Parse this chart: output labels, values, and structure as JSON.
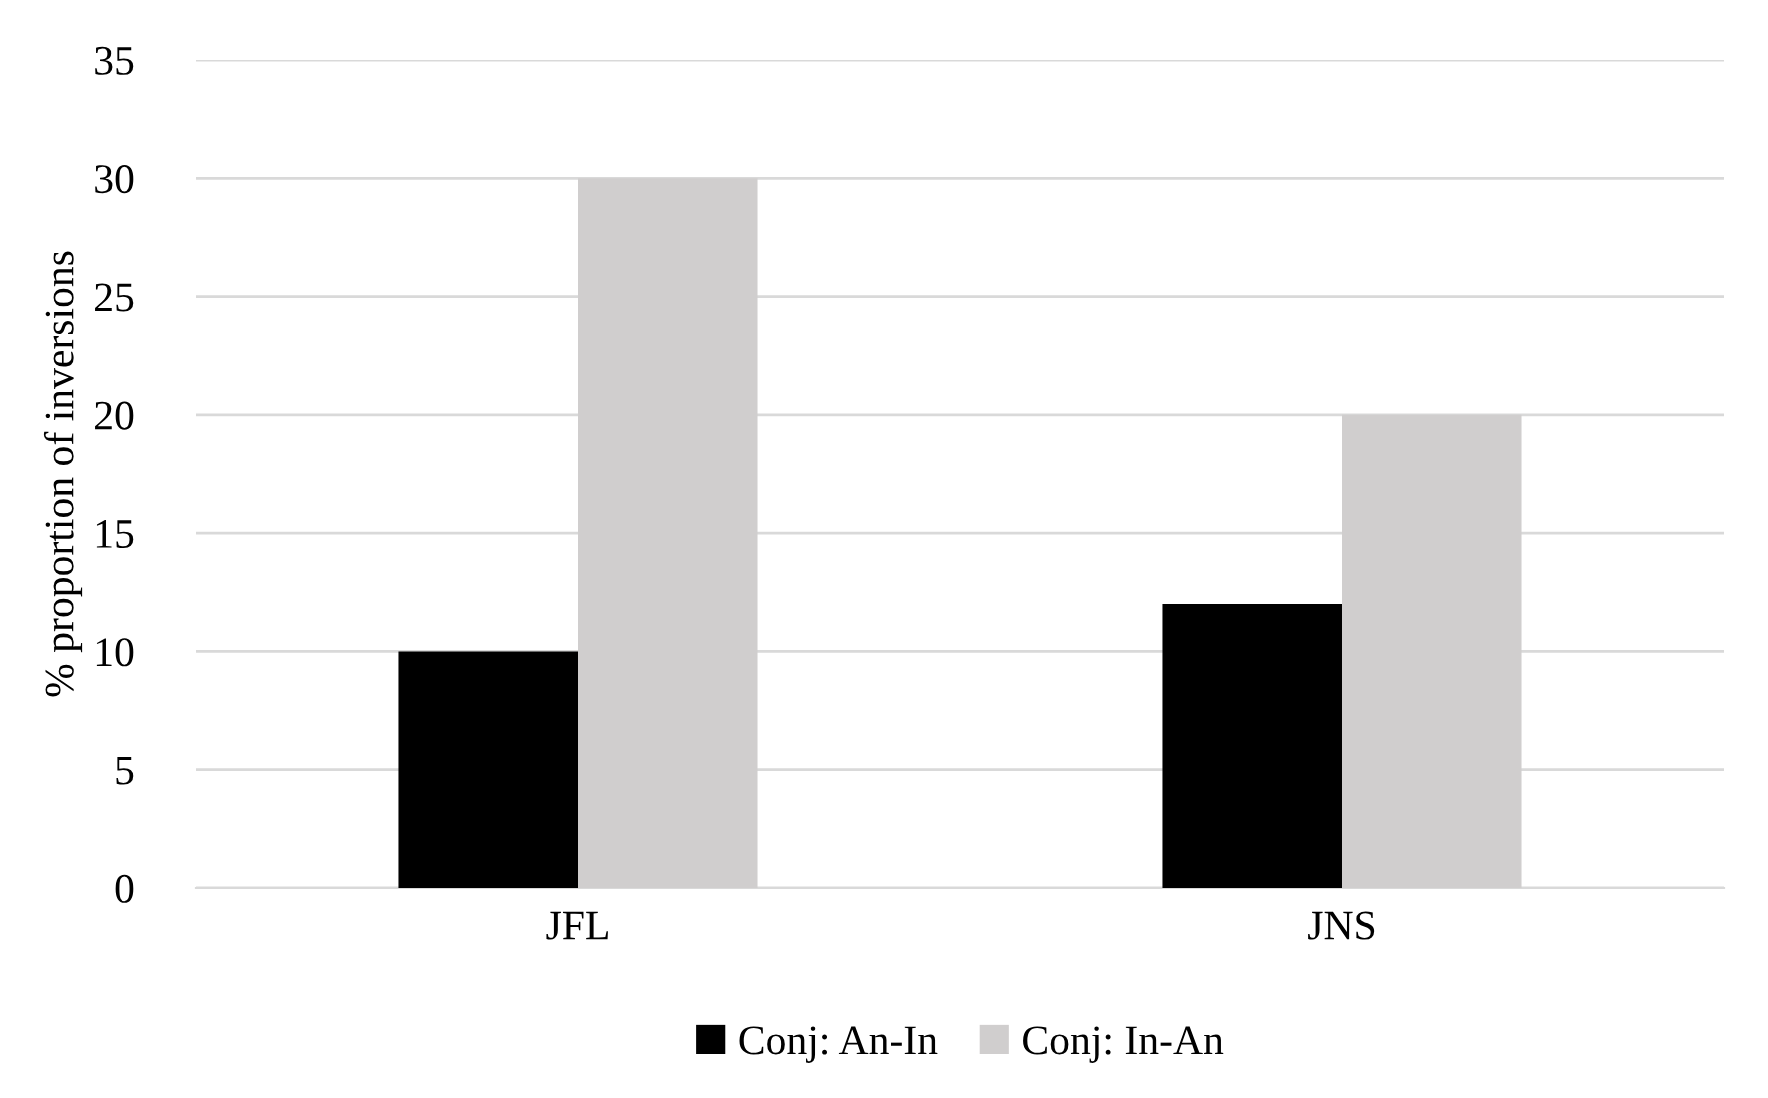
{
  "chart_data": {
    "type": "bar",
    "ylabel": "% proportion of inversions",
    "categories": [
      "JFL",
      "JNS"
    ],
    "series": [
      {
        "name": "Conj: An-In",
        "color": "#000000",
        "values": [
          10,
          12
        ]
      },
      {
        "name": "Conj: In-An",
        "color": "#d0cece",
        "values": [
          30,
          20
        ]
      }
    ],
    "ylim": [
      0,
      35
    ],
    "yticks": [
      0,
      5,
      10,
      15,
      20,
      25,
      30,
      35
    ],
    "grid": "y",
    "legend": "bottom"
  }
}
